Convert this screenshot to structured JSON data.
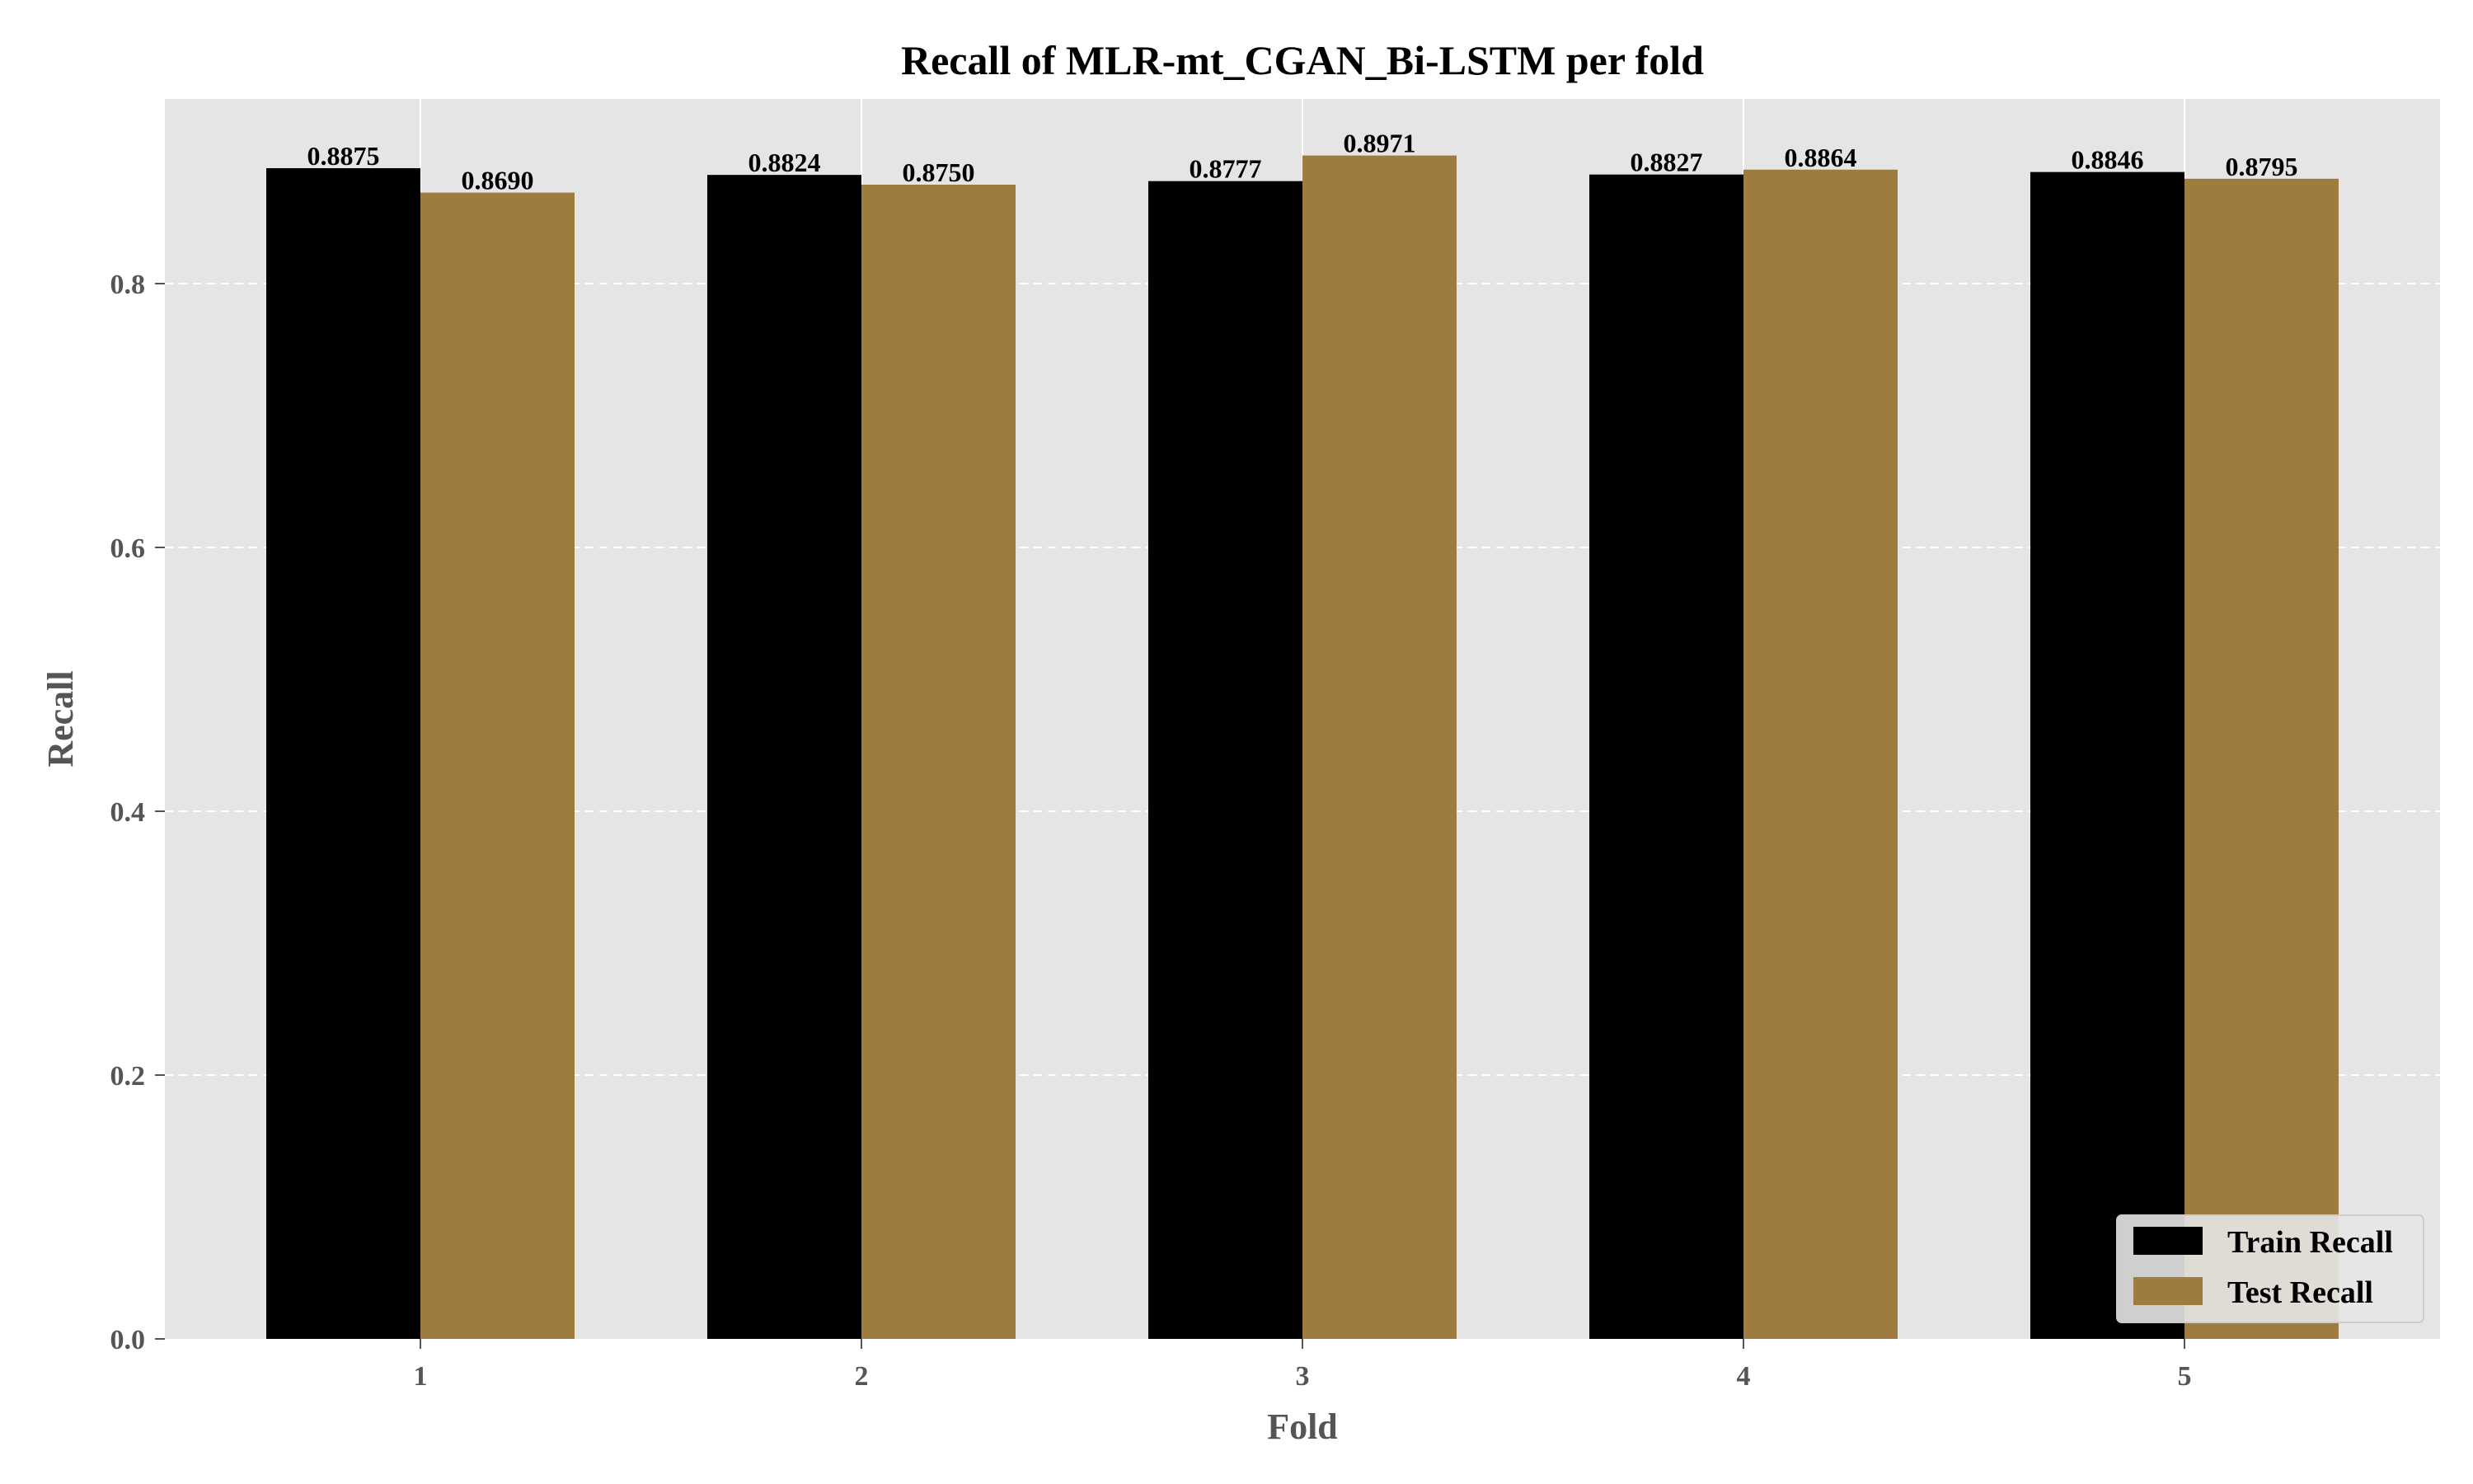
{
  "chart_data": {
    "type": "bar",
    "title": "Recall of MLR-mt_CGAN_Bi-LSTM per fold",
    "xlabel": "Fold",
    "ylabel": "Recall",
    "categories": [
      "1",
      "2",
      "3",
      "4",
      "5"
    ],
    "series": [
      {
        "name": "Train Recall",
        "values": [
          0.8875,
          0.8824,
          0.8777,
          0.8827,
          0.8846
        ],
        "labels": [
          "0.8875",
          "0.8824",
          "0.8777",
          "0.8827",
          "0.8846"
        ],
        "color": "#000000"
      },
      {
        "name": "Test Recall",
        "values": [
          0.869,
          0.875,
          0.8971,
          0.8864,
          0.8795
        ],
        "labels": [
          "0.8690",
          "0.8750",
          "0.8971",
          "0.8864",
          "0.8795"
        ],
        "color": "#9e7b3f"
      }
    ],
    "ylim": [
      0,
      0.94
    ],
    "yticks": [
      "0.0",
      "0.2",
      "0.4",
      "0.6",
      "0.8"
    ],
    "grid": {
      "x": "solid",
      "y": "dashed"
    },
    "background": "#e5e5e5",
    "legend_position": "lower-right"
  }
}
